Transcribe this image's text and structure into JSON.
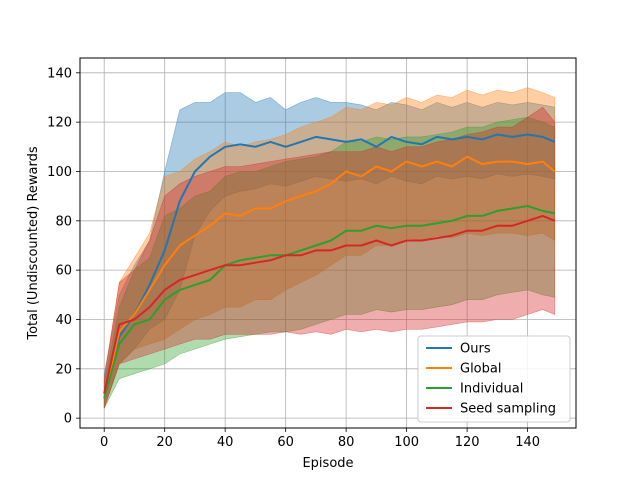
{
  "chart_data": {
    "type": "line",
    "title": "",
    "xlabel": "Episode",
    "ylabel": "Total (Undiscounted) Rewards",
    "xlim": [
      -8,
      156
    ],
    "ylim": [
      -4,
      146
    ],
    "xticks": [
      0,
      20,
      40,
      60,
      80,
      100,
      120,
      140
    ],
    "yticks": [
      0,
      20,
      40,
      60,
      80,
      100,
      120,
      140
    ],
    "grid": true,
    "legend_position": "lower-right",
    "series": [
      {
        "name": "Ours",
        "color": "#1f77b4",
        "x": [
          0,
          5,
          10,
          15,
          20,
          25,
          30,
          35,
          40,
          45,
          50,
          55,
          60,
          65,
          70,
          75,
          80,
          85,
          90,
          95,
          100,
          105,
          110,
          115,
          120,
          125,
          130,
          135,
          140,
          145,
          149
        ],
        "y": [
          10,
          33,
          42,
          54,
          68,
          88,
          100,
          106,
          110,
          111,
          110,
          112,
          110,
          112,
          114,
          113,
          112,
          113,
          110,
          114,
          112,
          111,
          114,
          113,
          114,
          113,
          115,
          114,
          115,
          114,
          112
        ],
        "upper": [
          18,
          50,
          62,
          72,
          100,
          125,
          128,
          128,
          132,
          132,
          128,
          130,
          125,
          128,
          130,
          128,
          128,
          127,
          125,
          128,
          127,
          125,
          128,
          126,
          128,
          126,
          128,
          127,
          128,
          127,
          126
        ],
        "lower": [
          4,
          22,
          28,
          36,
          40,
          52,
          74,
          84,
          90,
          92,
          93,
          95,
          94,
          96,
          98,
          97,
          96,
          97,
          95,
          98,
          96,
          95,
          98,
          97,
          98,
          97,
          99,
          98,
          99,
          98,
          97
        ]
      },
      {
        "name": "Global",
        "color": "#ff7f0e",
        "x": [
          0,
          5,
          10,
          15,
          20,
          25,
          30,
          35,
          40,
          45,
          50,
          55,
          60,
          65,
          70,
          75,
          80,
          85,
          90,
          95,
          100,
          105,
          110,
          115,
          120,
          125,
          130,
          135,
          140,
          145,
          149
        ],
        "y": [
          8,
          35,
          42,
          52,
          62,
          70,
          74,
          78,
          83,
          82,
          85,
          85,
          88,
          90,
          92,
          95,
          100,
          98,
          102,
          100,
          104,
          102,
          104,
          102,
          106,
          103,
          104,
          104,
          103,
          104,
          100
        ],
        "upper": [
          16,
          55,
          65,
          75,
          98,
          100,
          105,
          108,
          112,
          110,
          112,
          113,
          115,
          118,
          120,
          122,
          126,
          125,
          128,
          127,
          130,
          128,
          131,
          130,
          133,
          131,
          133,
          132,
          134,
          132,
          130
        ],
        "lower": [
          4,
          22,
          28,
          30,
          32,
          36,
          40,
          42,
          45,
          45,
          48,
          48,
          52,
          55,
          58,
          62,
          66,
          66,
          70,
          70,
          73,
          72,
          74,
          73,
          75,
          74,
          75,
          75,
          74,
          75,
          72
        ]
      },
      {
        "name": "Individual",
        "color": "#2ca02c",
        "x": [
          0,
          5,
          10,
          15,
          20,
          25,
          30,
          35,
          40,
          45,
          50,
          55,
          60,
          65,
          70,
          75,
          80,
          85,
          90,
          95,
          100,
          105,
          110,
          115,
          120,
          125,
          130,
          135,
          140,
          145,
          149
        ],
        "y": [
          8,
          30,
          38,
          40,
          48,
          52,
          54,
          56,
          62,
          64,
          65,
          66,
          66,
          68,
          70,
          72,
          76,
          76,
          78,
          77,
          78,
          78,
          79,
          80,
          82,
          82,
          84,
          85,
          86,
          84,
          83
        ],
        "upper": [
          14,
          45,
          60,
          65,
          82,
          85,
          90,
          92,
          98,
          100,
          100,
          102,
          104,
          105,
          106,
          108,
          112,
          112,
          114,
          113,
          114,
          114,
          115,
          116,
          118,
          118,
          120,
          121,
          122,
          120,
          118
        ],
        "lower": [
          4,
          16,
          18,
          20,
          22,
          26,
          28,
          30,
          32,
          33,
          34,
          35,
          35,
          36,
          38,
          40,
          42,
          42,
          44,
          43,
          44,
          44,
          45,
          46,
          48,
          48,
          50,
          51,
          52,
          50,
          49
        ]
      },
      {
        "name": "Seed sampling",
        "color": "#d62728",
        "x": [
          0,
          5,
          10,
          15,
          20,
          25,
          30,
          35,
          40,
          45,
          50,
          55,
          60,
          65,
          70,
          75,
          80,
          85,
          90,
          95,
          100,
          105,
          110,
          115,
          120,
          125,
          130,
          135,
          140,
          145,
          149
        ],
        "y": [
          10,
          38,
          40,
          45,
          52,
          56,
          58,
          60,
          62,
          62,
          63,
          64,
          66,
          66,
          68,
          68,
          70,
          70,
          72,
          70,
          72,
          72,
          73,
          74,
          76,
          76,
          78,
          78,
          80,
          82,
          80
        ],
        "upper": [
          16,
          55,
          60,
          72,
          90,
          95,
          98,
          100,
          102,
          102,
          103,
          104,
          105,
          106,
          107,
          108,
          108,
          108,
          110,
          108,
          110,
          110,
          112,
          113,
          115,
          116,
          118,
          118,
          122,
          126,
          120
        ],
        "lower": [
          4,
          22,
          24,
          26,
          28,
          30,
          32,
          32,
          34,
          34,
          34,
          34,
          35,
          34,
          35,
          34,
          36,
          35,
          36,
          35,
          36,
          36,
          37,
          38,
          39,
          39,
          40,
          40,
          42,
          44,
          42
        ]
      }
    ]
  }
}
